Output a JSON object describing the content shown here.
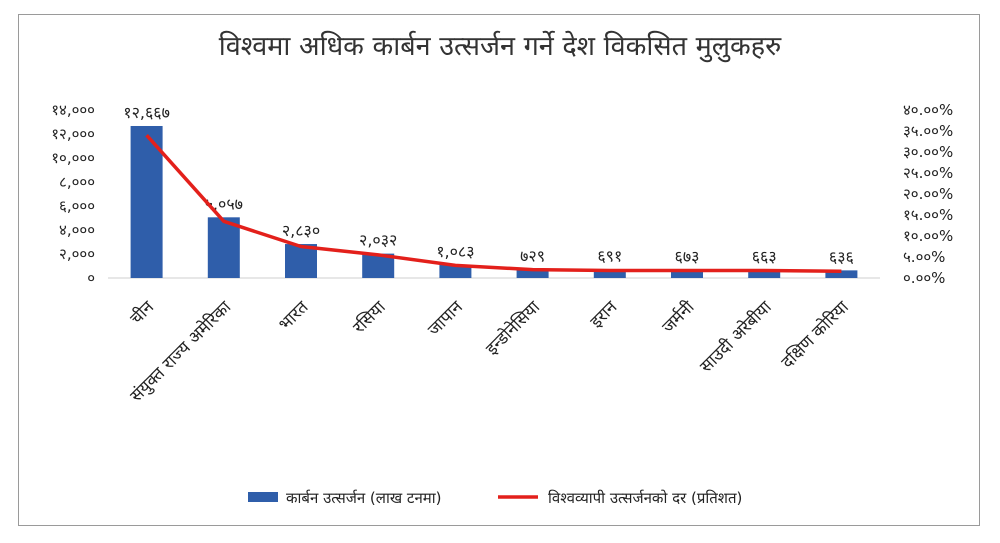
{
  "chart_data": {
    "type": "bar",
    "title": "विश्वमा अधिक कार्बन उत्सर्जन गर्ने देश विकसित मुलुकहरु",
    "categories": [
      "चीन",
      "संयुक्त राज्य अमेरिका",
      "भारत",
      "रसिया",
      "जापान",
      "इन्डोनेसिया",
      "इरान",
      "जर्मनी",
      "साउदी अरेबीया",
      "दक्षिण कोरिया"
    ],
    "data_labels": [
      "१२,६६७",
      "५,०५७",
      "२,८३०",
      "२,०३२",
      "१,०८३",
      "७२९",
      "६९१",
      "६७३",
      "६६३",
      "६३६"
    ],
    "left_ticks": [
      "०",
      "२,०००",
      "४,०००",
      "६,०००",
      "८,०००",
      "१०,०००",
      "१२,०००",
      "१४,०००"
    ],
    "right_ticks": [
      "०.००%",
      "५.००%",
      "१०.००%",
      "१५.००%",
      "२०.००%",
      "२५.००%",
      "३०.००%",
      "३५.००%",
      "४०.००%"
    ],
    "left_ylim": [
      0,
      14000
    ],
    "right_ylim": [
      0,
      40
    ],
    "series": [
      {
        "name": "कार्बन उत्सर्जन (लाख टनमा)",
        "kind": "bar",
        "axis": "left",
        "color": "#2f5eaa",
        "values": [
          12667,
          5057,
          2830,
          2032,
          1083,
          729,
          691,
          673,
          663,
          636
        ]
      },
      {
        "name": "विश्वव्यापी उत्सर्जनको दर (प्रतिशत)",
        "kind": "line",
        "axis": "right",
        "color": "#e3201b",
        "values": [
          34,
          13.5,
          7.5,
          5.5,
          3,
          2,
          1.8,
          1.8,
          1.8,
          1.6
        ]
      }
    ],
    "legend_position": "bottom"
  }
}
